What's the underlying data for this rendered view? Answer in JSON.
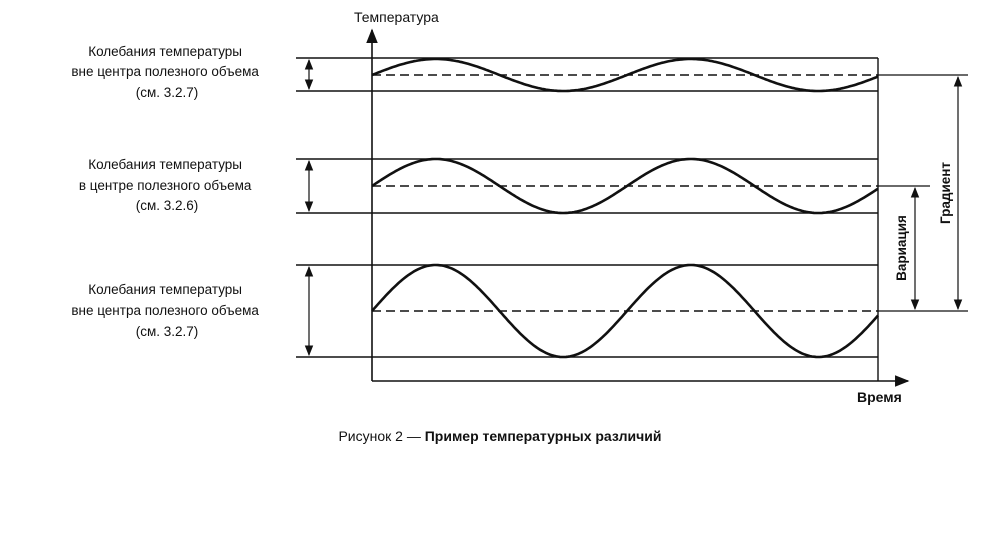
{
  "axes": {
    "y_label": "Температура",
    "x_label": "Время"
  },
  "bands": [
    {
      "line1": "Колебания температуры",
      "line2": "вне центра полезного объема",
      "line3": "(см. 3.2.7)",
      "amplitude": "small"
    },
    {
      "line1": "Колебания температуры",
      "line2": "в центре полезного объема",
      "line3": "(см. 3.2.6)",
      "amplitude": "medium"
    },
    {
      "line1": "Колебания температуры",
      "line2": "вне центра полезного объема",
      "line3": "(см. 3.2.7)",
      "amplitude": "large"
    }
  ],
  "dimensions": {
    "variation": "Вариация",
    "gradient": "Градиент"
  },
  "caption": {
    "prefix": "Рисунок 2 — ",
    "title": "Пример температурных различий"
  },
  "colors": {
    "ink": "#111111",
    "background": "#ffffff"
  }
}
